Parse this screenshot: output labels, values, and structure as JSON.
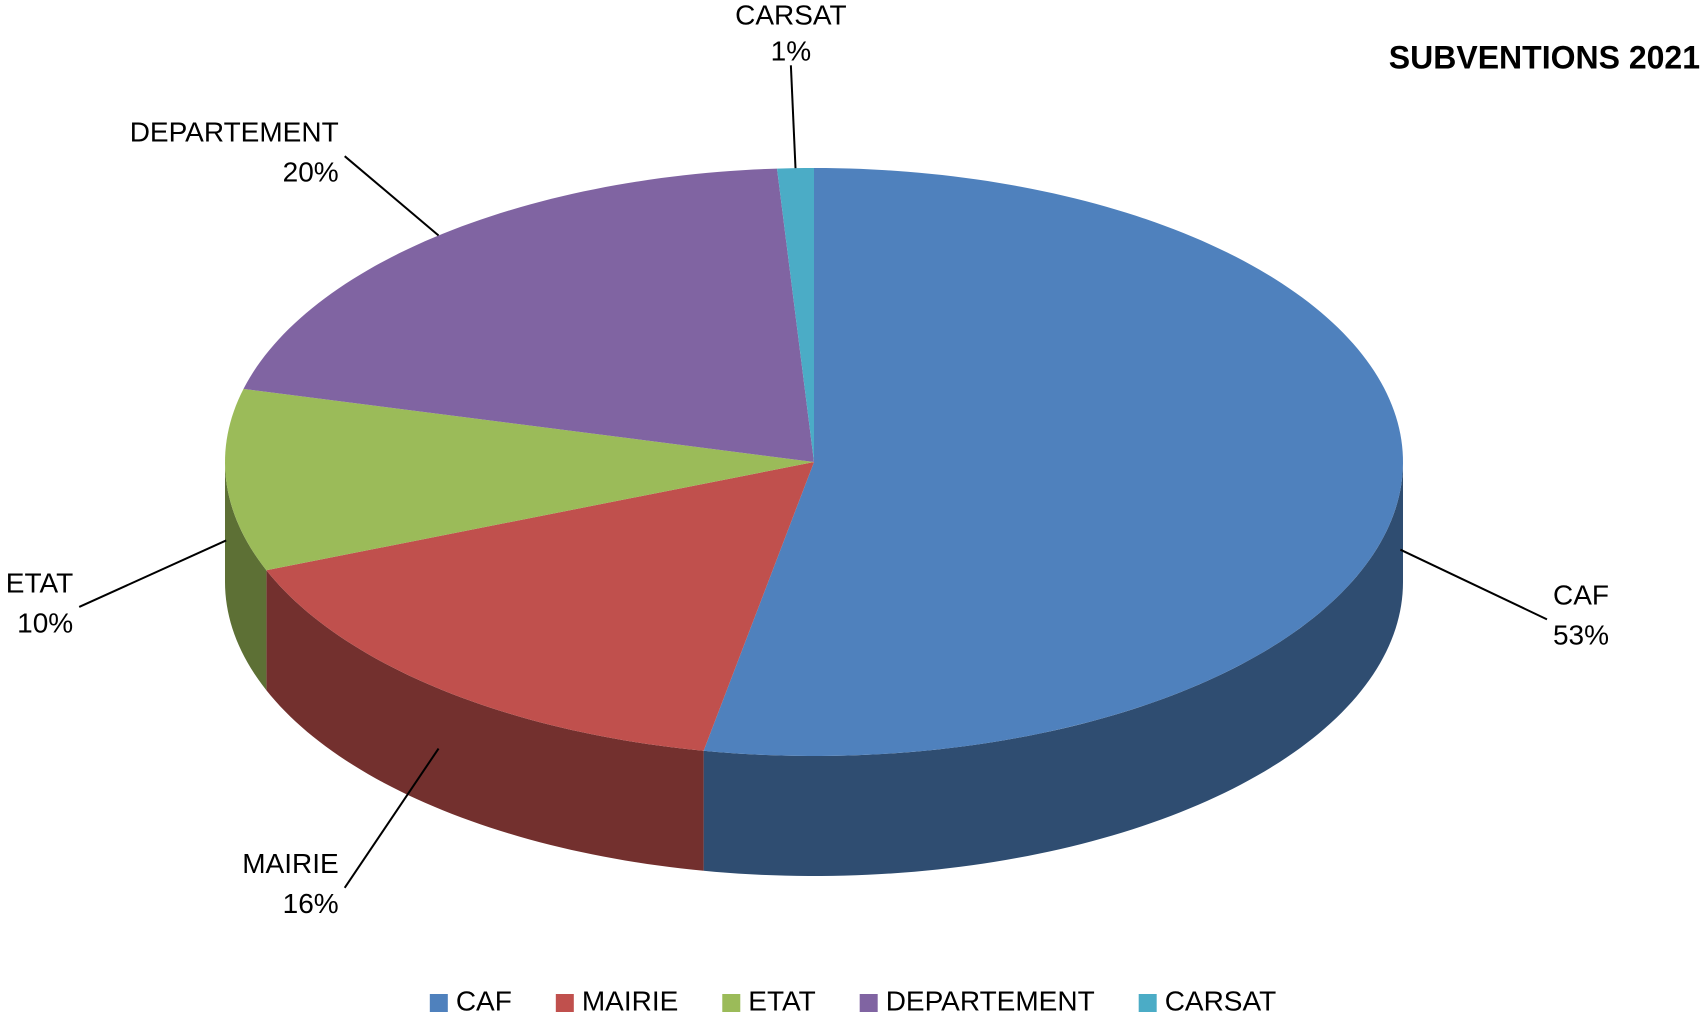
{
  "chart_data": {
    "type": "pie",
    "title": "SUBVENTIONS 2021",
    "categories": [
      "CAF",
      "MAIRIE",
      "ETAT",
      "DEPARTEMENT",
      "CARSAT"
    ],
    "values": [
      53,
      16,
      10,
      20,
      1
    ],
    "value_labels": [
      "53%",
      "16%",
      "10%",
      "20%",
      "1%"
    ],
    "colors": [
      "#4f81bd",
      "#c0504d",
      "#9bbb59",
      "#8064a2",
      "#4bacc6"
    ],
    "legend": "bottom"
  }
}
